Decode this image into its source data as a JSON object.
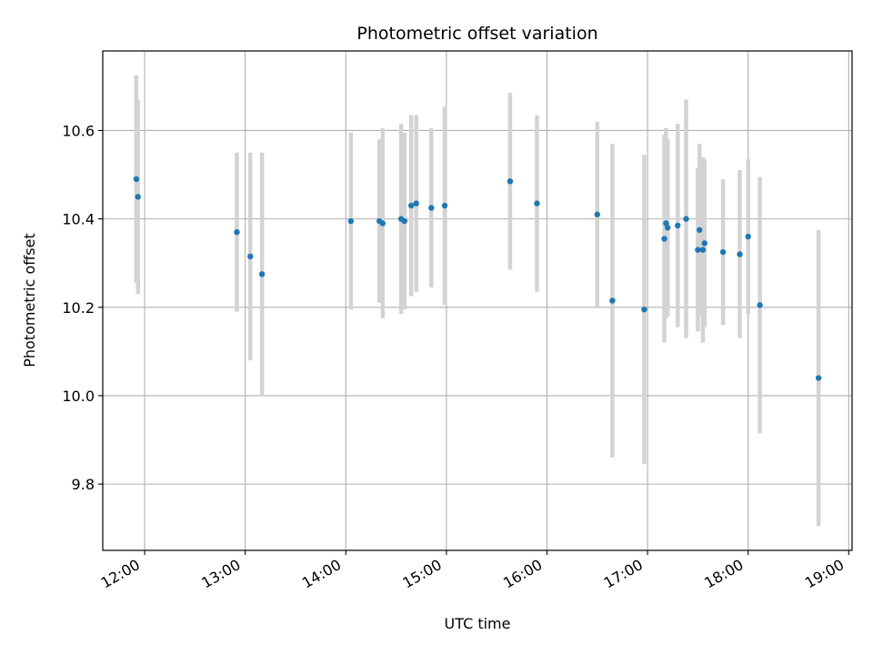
{
  "chart_data": {
    "type": "scatter",
    "title": "Photometric offset variation",
    "xlabel": "UTC time",
    "ylabel": "Photometric offset",
    "xlim": [
      "11:35",
      "19:02"
    ],
    "ylim": [
      9.65,
      10.78
    ],
    "grid": true,
    "x_ticks": [
      "12:00",
      "13:00",
      "14:00",
      "15:00",
      "16:00",
      "17:00",
      "18:00",
      "19:00"
    ],
    "y_ticks": [
      9.8,
      10.0,
      10.2,
      10.4,
      10.6
    ],
    "y_tick_labels": [
      "9.8",
      "10.0",
      "10.2",
      "10.4",
      "10.6"
    ],
    "point_color": "#1f77b4",
    "errorbar_color": "#d3d3d3",
    "points": [
      {
        "x": "11:55",
        "y": 10.49,
        "err": 0.235
      },
      {
        "x": "11:56",
        "y": 10.45,
        "err": 0.22
      },
      {
        "x": "12:55",
        "y": 10.37,
        "err": 0.18
      },
      {
        "x": "13:03",
        "y": 10.315,
        "err": 0.235
      },
      {
        "x": "13:10",
        "y": 10.275,
        "err": 0.275
      },
      {
        "x": "14:03",
        "y": 10.395,
        "err": 0.2
      },
      {
        "x": "14:20",
        "y": 10.395,
        "err": 0.185
      },
      {
        "x": "14:22",
        "y": 10.39,
        "err": 0.215
      },
      {
        "x": "14:33",
        "y": 10.4,
        "err": 0.215
      },
      {
        "x": "14:35",
        "y": 10.395,
        "err": 0.2
      },
      {
        "x": "14:39",
        "y": 10.43,
        "err": 0.205
      },
      {
        "x": "14:42",
        "y": 10.435,
        "err": 0.2
      },
      {
        "x": "14:51",
        "y": 10.425,
        "err": 0.18
      },
      {
        "x": "14:59",
        "y": 10.43,
        "err": 0.225
      },
      {
        "x": "15:38",
        "y": 10.485,
        "err": 0.2
      },
      {
        "x": "15:54",
        "y": 10.435,
        "err": 0.2
      },
      {
        "x": "16:30",
        "y": 10.41,
        "err": 0.21
      },
      {
        "x": "16:39",
        "y": 10.215,
        "err": 0.355
      },
      {
        "x": "16:58",
        "y": 10.195,
        "err": 0.35
      },
      {
        "x": "17:10",
        "y": 10.355,
        "err": 0.235
      },
      {
        "x": "17:11",
        "y": 10.39,
        "err": 0.215
      },
      {
        "x": "17:12",
        "y": 10.38,
        "err": 0.2
      },
      {
        "x": "17:18",
        "y": 10.385,
        "err": 0.23
      },
      {
        "x": "17:23",
        "y": 10.4,
        "err": 0.27
      },
      {
        "x": "17:30",
        "y": 10.33,
        "err": 0.185
      },
      {
        "x": "17:31",
        "y": 10.375,
        "err": 0.195
      },
      {
        "x": "17:33",
        "y": 10.33,
        "err": 0.21
      },
      {
        "x": "17:34",
        "y": 10.345,
        "err": 0.19
      },
      {
        "x": "17:45",
        "y": 10.325,
        "err": 0.165
      },
      {
        "x": "17:55",
        "y": 10.32,
        "err": 0.19
      },
      {
        "x": "18:00",
        "y": 10.36,
        "err": 0.175
      },
      {
        "x": "18:07",
        "y": 10.205,
        "err": 0.29
      },
      {
        "x": "18:42",
        "y": 10.04,
        "err": 0.335
      }
    ]
  }
}
